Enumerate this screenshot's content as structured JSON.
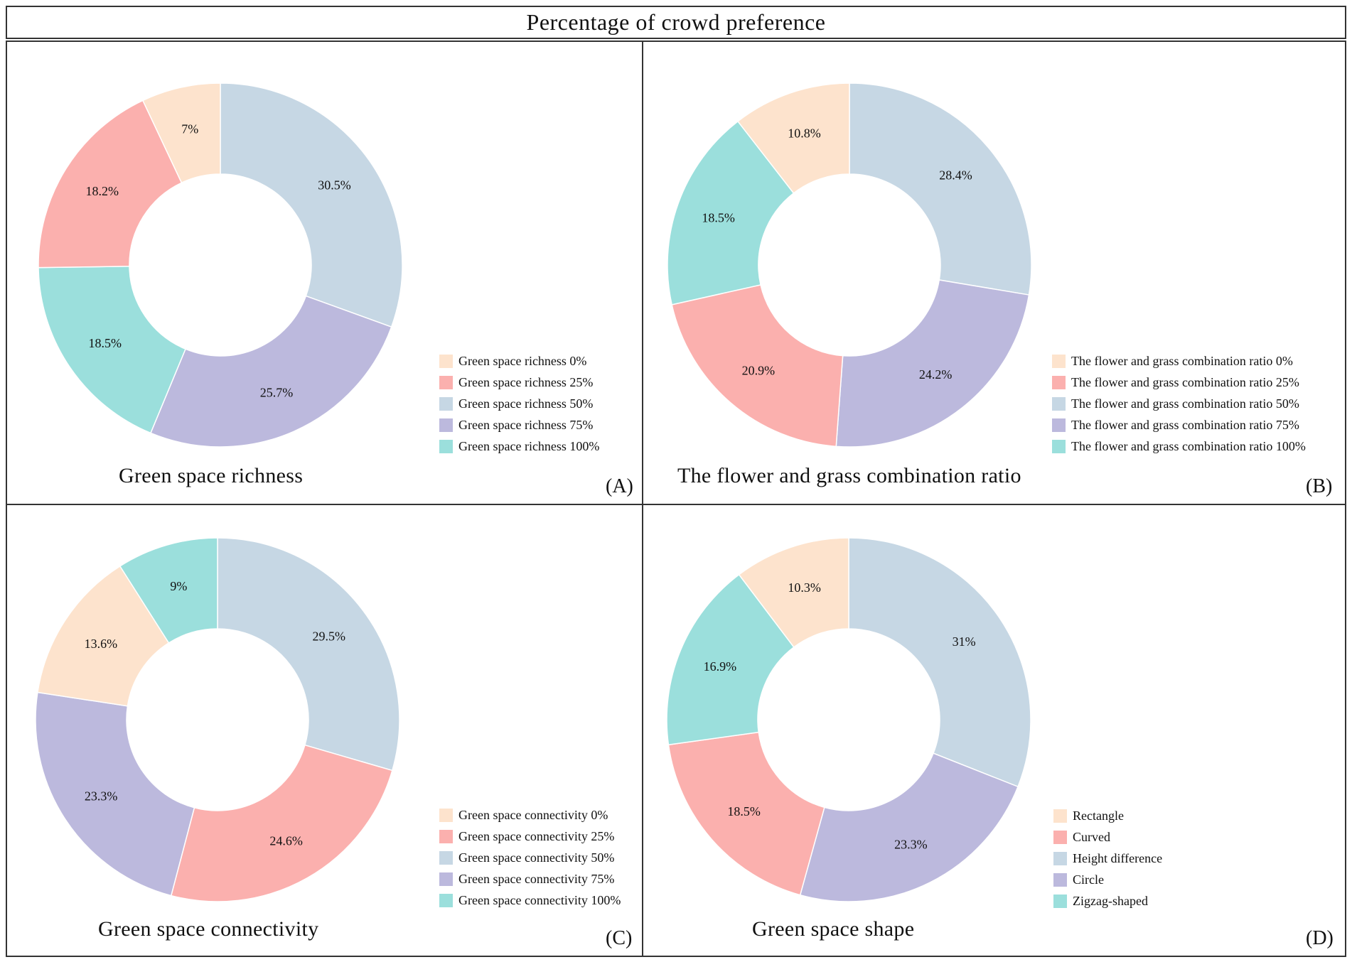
{
  "figure_title": "Percentage of crowd preference",
  "colors": {
    "peach": "#fde3cd",
    "pink": "#fbb0ae",
    "light_blue": "#c6d7e4",
    "lavender": "#bcb9dd",
    "teal": "#9bdfdc"
  },
  "chart_data": [
    {
      "type": "pie",
      "title": "Green space richness",
      "panel_tag": "(A)",
      "slices": [
        {
          "legend": "Green space richness 50%",
          "value": 30.5,
          "label": "30.5%",
          "color": "#c6d7e4"
        },
        {
          "legend": "Green space richness 75%",
          "value": 25.7,
          "label": "25.7%",
          "color": "#bcb9dd"
        },
        {
          "legend": "Green space richness 100%",
          "value": 18.5,
          "label": "18.5%",
          "color": "#9bdfdc"
        },
        {
          "legend": "Green space richness 25%",
          "value": 18.2,
          "label": "18.2%",
          "color": "#fbb0ae"
        },
        {
          "legend": "Green space richness 0%",
          "value": 7,
          "label": "7%",
          "color": "#fde3cd"
        }
      ],
      "legend": [
        {
          "label": "Green space richness 0%",
          "color": "#fde3cd"
        },
        {
          "label": "Green space richness 25%",
          "color": "#fbb0ae"
        },
        {
          "label": "Green space richness 50%",
          "color": "#c6d7e4"
        },
        {
          "label": "Green space richness 75%",
          "color": "#bcb9dd"
        },
        {
          "label": "Green space richness 100%",
          "color": "#9bdfdc"
        }
      ]
    },
    {
      "type": "pie",
      "title": "The flower and grass combination ratio",
      "panel_tag": "(B)",
      "slices": [
        {
          "legend": "The flower and grass combination ratio 50%",
          "value": 28.4,
          "label": "28.4%",
          "color": "#c6d7e4"
        },
        {
          "legend": "The flower and grass combination ratio 75%",
          "value": 24.2,
          "label": "24.2%",
          "color": "#bcb9dd"
        },
        {
          "legend": "The flower and grass combination ratio 25%",
          "value": 20.9,
          "label": "20.9%",
          "color": "#fbb0ae"
        },
        {
          "legend": "The flower and grass combination ratio 100%",
          "value": 18.5,
          "label": "18.5%",
          "color": "#9bdfdc"
        },
        {
          "legend": "The flower and grass combination ratio 0%",
          "value": 10.8,
          "label": "10.8%",
          "color": "#fde3cd"
        }
      ],
      "legend": [
        {
          "label": "The flower and grass combination ratio 0%",
          "color": "#fde3cd"
        },
        {
          "label": "The flower and grass combination ratio 25%",
          "color": "#fbb0ae"
        },
        {
          "label": "The flower and grass combination ratio 50%",
          "color": "#c6d7e4"
        },
        {
          "label": "The flower and grass combination ratio 75%",
          "color": "#bcb9dd"
        },
        {
          "label": "The flower and grass combination ratio 100%",
          "color": "#9bdfdc"
        }
      ]
    },
    {
      "type": "pie",
      "title": "Green space connectivity",
      "panel_tag": "(C)",
      "slices": [
        {
          "legend": "Green space connectivity 50%",
          "value": 29.5,
          "label": "29.5%",
          "color": "#c6d7e4"
        },
        {
          "legend": "Green space connectivity 25%",
          "value": 24.6,
          "label": "24.6%",
          "color": "#fbb0ae"
        },
        {
          "legend": "Green space connectivity 75%",
          "value": 23.3,
          "label": "23.3%",
          "color": "#bcb9dd"
        },
        {
          "legend": "Green space connectivity 0%",
          "value": 13.6,
          "label": "13.6%",
          "color": "#fde3cd"
        },
        {
          "legend": "Green space connectivity 100%",
          "value": 9,
          "label": "9%",
          "color": "#9bdfdc"
        }
      ],
      "legend": [
        {
          "label": "Green space connectivity 0%",
          "color": "#fde3cd"
        },
        {
          "label": "Green space connectivity 25%",
          "color": "#fbb0ae"
        },
        {
          "label": "Green space connectivity 50%",
          "color": "#c6d7e4"
        },
        {
          "label": "Green space connectivity 75%",
          "color": "#bcb9dd"
        },
        {
          "label": "Green space connectivity 100%",
          "color": "#9bdfdc"
        }
      ]
    },
    {
      "type": "pie",
      "title": "Green space shape",
      "panel_tag": "(D)",
      "slices": [
        {
          "legend": "Height difference",
          "value": 31,
          "label": "31%",
          "color": "#c6d7e4"
        },
        {
          "legend": "Circle",
          "value": 23.3,
          "label": "23.3%",
          "color": "#bcb9dd"
        },
        {
          "legend": "Curved",
          "value": 18.5,
          "label": "18.5%",
          "color": "#fbb0ae"
        },
        {
          "legend": "Zigzag-shaped",
          "value": 16.9,
          "label": "16.9%",
          "color": "#9bdfdc"
        },
        {
          "legend": "Rectangle",
          "value": 10.3,
          "label": "10.3%",
          "color": "#fde3cd"
        }
      ],
      "legend": [
        {
          "label": "Rectangle",
          "color": "#fde3cd"
        },
        {
          "label": "Curved",
          "color": "#fbb0ae"
        },
        {
          "label": "Height difference",
          "color": "#c6d7e4"
        },
        {
          "label": "Circle",
          "color": "#bcb9dd"
        },
        {
          "label": "Zigzag-shaped",
          "color": "#9bdfdc"
        }
      ]
    }
  ]
}
